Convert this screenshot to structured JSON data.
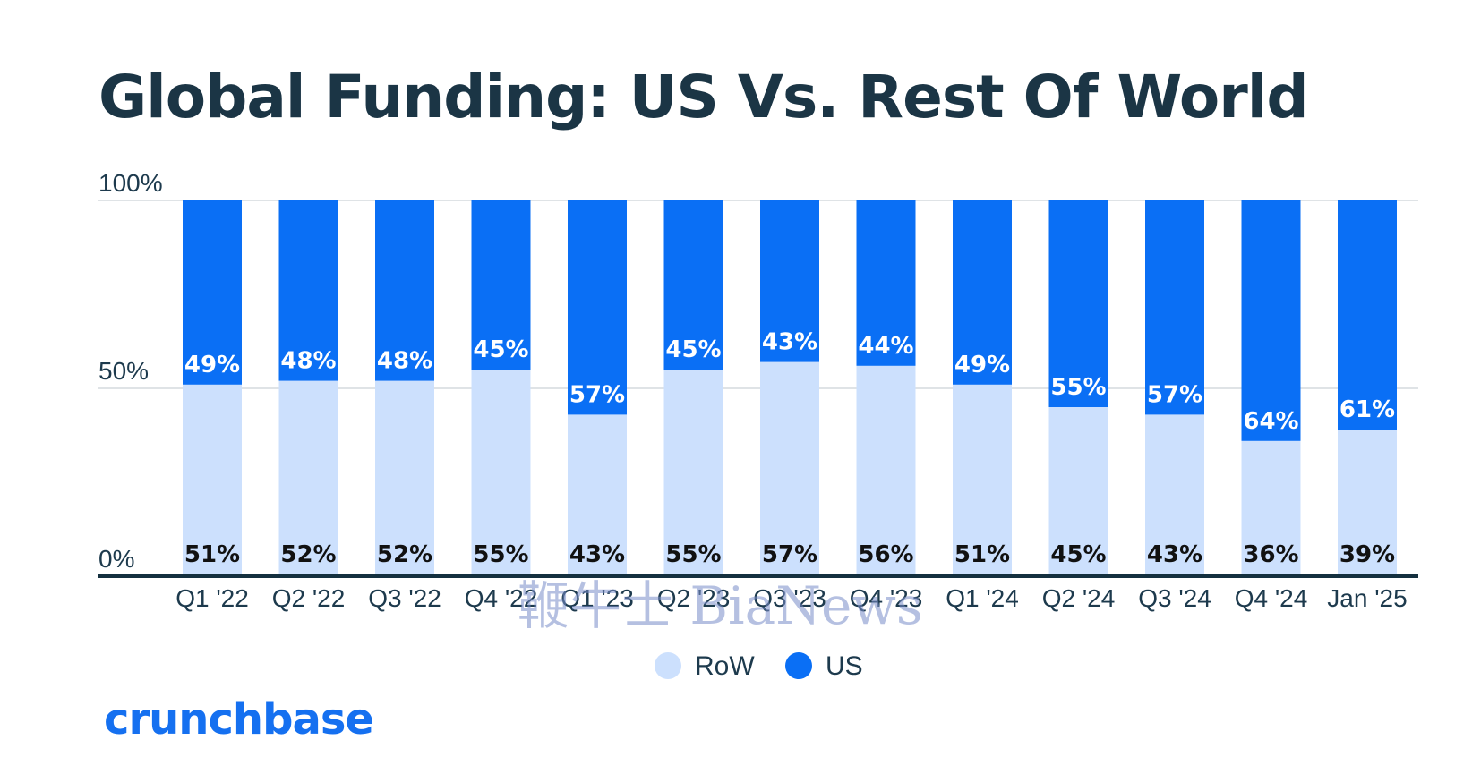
{
  "chart_data": {
    "type": "bar",
    "stacked": true,
    "title": "Global Funding: US Vs. Rest Of World",
    "categories": [
      "Q1 '22",
      "Q2 '22",
      "Q3 '22",
      "Q4 '22",
      "Q1 '23",
      "Q2 '23",
      "Q3 '23",
      "Q4 '23",
      "Q1 '24",
      "Q2 '24",
      "Q3 '24",
      "Q4 '24",
      "Jan '25"
    ],
    "series": [
      {
        "name": "RoW",
        "color": "#cce0fd",
        "values": [
          51,
          52,
          52,
          55,
          43,
          55,
          57,
          56,
          51,
          45,
          43,
          36,
          39
        ],
        "labels": [
          "51%",
          "52%",
          "52%",
          "55%",
          "43%",
          "55%",
          "57%",
          "56%",
          "51%",
          "45%",
          "43%",
          "36%",
          "39%"
        ]
      },
      {
        "name": "US",
        "color": "#0a6ff5",
        "values": [
          49,
          48,
          48,
          45,
          57,
          45,
          43,
          44,
          49,
          55,
          57,
          64,
          61
        ],
        "labels": [
          "49%",
          "48%",
          "48%",
          "45%",
          "57%",
          "45%",
          "43%",
          "44%",
          "49%",
          "55%",
          "57%",
          "64%",
          "61%"
        ]
      }
    ],
    "yticks": [
      {
        "value": 0,
        "label": "0%"
      },
      {
        "value": 50,
        "label": "50%"
      },
      {
        "value": 100,
        "label": "100%"
      }
    ],
    "ylim": [
      0,
      100
    ],
    "grid": true,
    "legend_position": "bottom-center",
    "xlabel": "",
    "ylabel": ""
  },
  "brand": {
    "logo_text": "crunchbase",
    "color": "#1570f0"
  },
  "watermark": {
    "text": "鞭牛士 BiaNews"
  },
  "colors": {
    "title": "#1b3545",
    "axis_text": "#1d3a4d",
    "gridline": "#dfe3e6",
    "baseline": "#14303f"
  }
}
